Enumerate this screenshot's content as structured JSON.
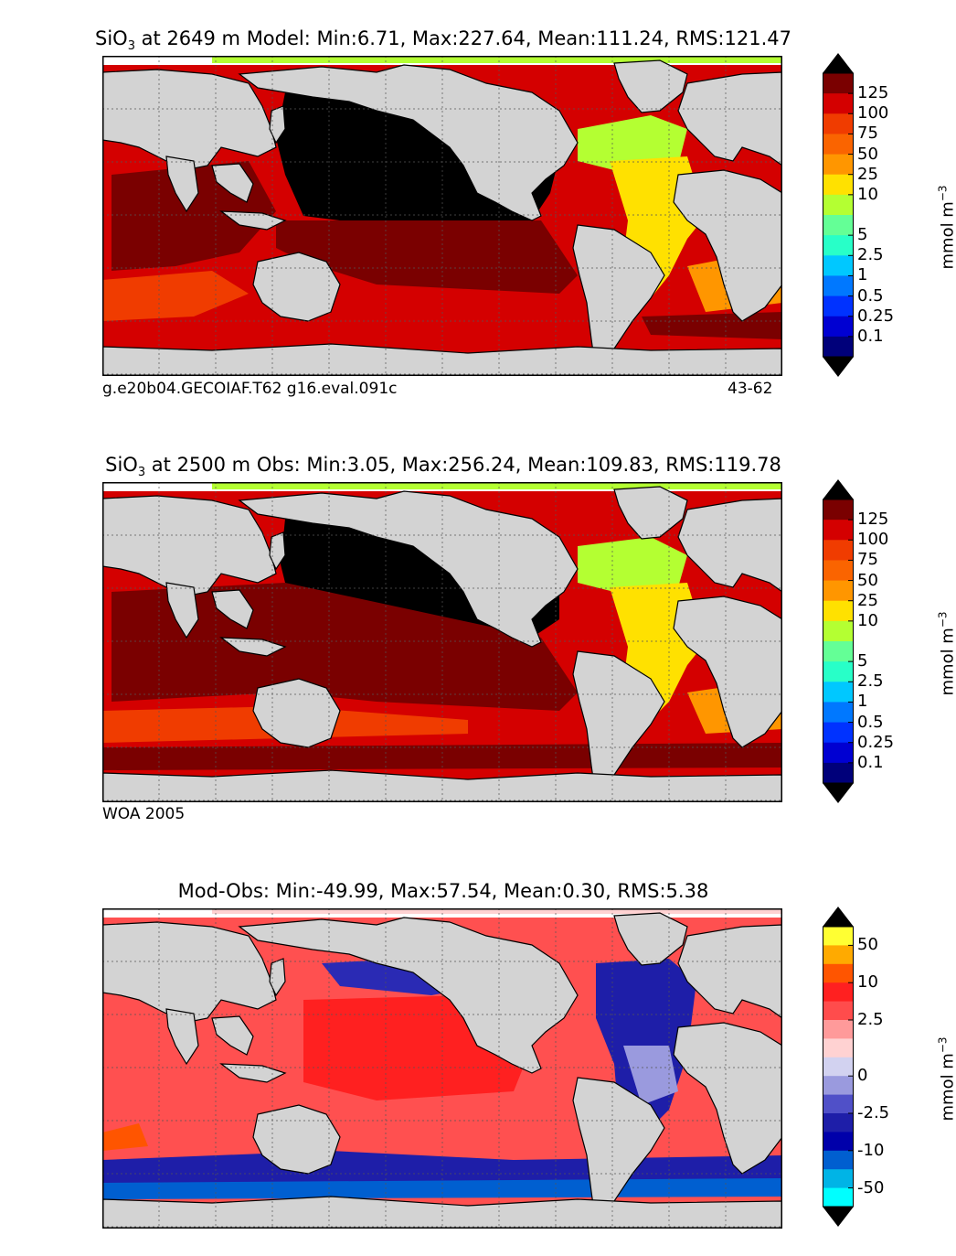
{
  "panels": [
    {
      "title_prefix": "SiO",
      "title_sub": "3",
      "title_rest": " at 2649 m Model: Min:6.71, Max:227.64, Mean:111.24, RMS:121.47",
      "left_note": "g.e20b04.GECOIAF.T62 g16.eval.091c",
      "right_note": "43-62",
      "field": "model"
    },
    {
      "title_prefix": "SiO",
      "title_sub": "3",
      "title_rest": " at 2500 m Obs: Min:3.05, Max:256.24, Mean:109.83, RMS:119.78",
      "left_note": "WOA 2005",
      "right_note": "",
      "field": "obs"
    },
    {
      "title_prefix": "",
      "title_sub": "",
      "title_rest": "Mod-Obs: Min:-49.99, Max:57.54, Mean:0.30, RMS:5.38",
      "left_note": "",
      "right_note": "",
      "field": "diff"
    }
  ],
  "colorbars": {
    "conc": {
      "unit": "mmol m",
      "unit_sup": "−3",
      "labels": [
        "125",
        "100",
        "75",
        "50",
        "25",
        "10",
        "5",
        "2.5",
        "1",
        "0.5",
        "0.25",
        "0.1"
      ],
      "colors": [
        "#7a0000",
        "#d40000",
        "#f03c00",
        "#fa6400",
        "#ff9600",
        "#ffe100",
        "#b4ff32",
        "#64ff96",
        "#28ffc8",
        "#00c8ff",
        "#0078ff",
        "#0032ff",
        "#0000d2",
        "#00007a"
      ],
      "top_tip": "#000000",
      "bottom_tip": "#000000"
    },
    "diff": {
      "unit": "mmol m",
      "unit_sup": "−3",
      "labels": [
        "50",
        "10",
        "2.5",
        "0",
        "-2.5",
        "-10",
        "-50"
      ],
      "colors": [
        "#ffff33",
        "#ffaa00",
        "#ff5500",
        "#ff2020",
        "#ff4c4c",
        "#ff9a9a",
        "#ffd2d2",
        "#d2d2f0",
        "#9a9ade",
        "#5050c8",
        "#1e1ea8",
        "#0000aa",
        "#005fd0",
        "#00b4e6",
        "#00ffff"
      ],
      "top_tip": "#000000",
      "bottom_tip": "#000000"
    }
  },
  "chart_data": [
    {
      "type": "heatmap",
      "title": "SiO3 at 2649 m Model: Min:6.71, Max:227.64, Mean:111.24, RMS:121.47",
      "variable": "SiO3",
      "depth_m": 2649,
      "source": "Model",
      "stats": {
        "min": 6.71,
        "max": 227.64,
        "mean": 111.24,
        "rms": 121.47
      },
      "colorbar_levels": [
        0.1,
        0.25,
        0.5,
        1,
        2.5,
        5,
        10,
        25,
        50,
        75,
        100,
        125
      ],
      "units": "mmol m^-3",
      "notes": [
        "g.e20b04.GECOIAF.T62 g16.eval.091c",
        "43-62"
      ]
    },
    {
      "type": "heatmap",
      "title": "SiO3 at 2500 m Obs: Min:3.05, Max:256.24, Mean:109.83, RMS:119.78",
      "variable": "SiO3",
      "depth_m": 2500,
      "source": "Obs",
      "stats": {
        "min": 3.05,
        "max": 256.24,
        "mean": 109.83,
        "rms": 119.78
      },
      "colorbar_levels": [
        0.1,
        0.25,
        0.5,
        1,
        2.5,
        5,
        10,
        25,
        50,
        75,
        100,
        125
      ],
      "units": "mmol m^-3",
      "notes": [
        "WOA 2005"
      ]
    },
    {
      "type": "heatmap",
      "title": "Mod-Obs: Min:-49.99, Max:57.54, Mean:0.30, RMS:5.38",
      "stats": {
        "min": -49.99,
        "max": 57.54,
        "mean": 0.3,
        "rms": 5.38
      },
      "colorbar_levels": [
        -50,
        -10,
        -2.5,
        0,
        2.5,
        10,
        50
      ],
      "units": "mmol m^-3"
    }
  ]
}
